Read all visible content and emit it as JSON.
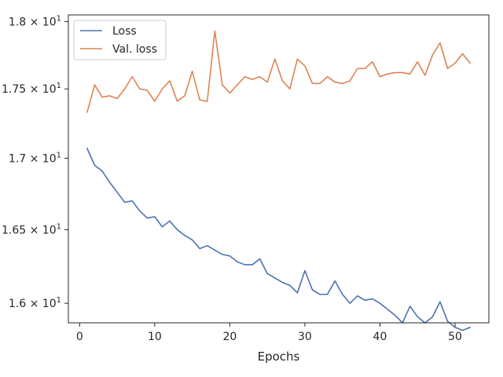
{
  "chart_data": {
    "type": "line",
    "xlabel": "Epochs",
    "ylabel": "",
    "xlim": [
      -1.5,
      54.5
    ],
    "ylim": [
      15.87,
      18.05
    ],
    "y_scale": "log",
    "grid": false,
    "legend_position": "top-left",
    "x_ticks": [
      0,
      10,
      20,
      30,
      40,
      50
    ],
    "x_tick_labels": [
      "0",
      "10",
      "20",
      "30",
      "40",
      "50"
    ],
    "y_ticks": [
      16.0,
      16.5,
      17.0,
      17.5,
      18.0
    ],
    "y_tick_labels": [
      {
        "mantissa": "1.6",
        "base": "10",
        "exp": "1"
      },
      {
        "mantissa": "1.65",
        "base": "10",
        "exp": "1"
      },
      {
        "mantissa": "1.7",
        "base": "10",
        "exp": "1"
      },
      {
        "mantissa": "1.75",
        "base": "10",
        "exp": "1"
      },
      {
        "mantissa": "1.8",
        "base": "10",
        "exp": "1"
      }
    ],
    "x": [
      1,
      2,
      3,
      4,
      5,
      6,
      7,
      8,
      9,
      10,
      11,
      12,
      13,
      14,
      15,
      16,
      17,
      18,
      19,
      20,
      21,
      22,
      23,
      24,
      25,
      26,
      27,
      28,
      29,
      30,
      31,
      32,
      33,
      34,
      35,
      36,
      37,
      38,
      39,
      40,
      41,
      42,
      43,
      44,
      45,
      46,
      47,
      48,
      49,
      50,
      51,
      52
    ],
    "series": [
      {
        "name": "Loss",
        "color": "#4c72b0",
        "values": [
          17.07,
          16.95,
          16.91,
          16.83,
          16.76,
          16.69,
          16.7,
          16.63,
          16.58,
          16.59,
          16.52,
          16.56,
          16.5,
          16.46,
          16.43,
          16.37,
          16.39,
          16.36,
          16.33,
          16.32,
          16.28,
          16.26,
          16.26,
          16.3,
          16.2,
          16.17,
          16.14,
          16.12,
          16.07,
          16.22,
          16.09,
          16.06,
          16.06,
          16.15,
          16.06,
          16.0,
          16.05,
          16.02,
          16.03,
          16.0,
          15.96,
          15.92,
          15.87,
          15.98,
          15.91,
          15.87,
          15.91,
          16.01,
          15.88,
          15.84,
          15.82,
          15.84
        ]
      },
      {
        "name": "Val. loss",
        "color": "#dd8452",
        "values": [
          17.33,
          17.53,
          17.44,
          17.45,
          17.43,
          17.5,
          17.59,
          17.5,
          17.49,
          17.41,
          17.5,
          17.56,
          17.41,
          17.45,
          17.63,
          17.42,
          17.41,
          17.93,
          17.53,
          17.47,
          17.53,
          17.59,
          17.57,
          17.59,
          17.55,
          17.72,
          17.56,
          17.5,
          17.72,
          17.67,
          17.54,
          17.54,
          17.59,
          17.55,
          17.54,
          17.56,
          17.65,
          17.65,
          17.7,
          17.59,
          17.61,
          17.62,
          17.62,
          17.61,
          17.7,
          17.6,
          17.75,
          17.84,
          17.65,
          17.69,
          17.76,
          17.69
        ]
      }
    ]
  }
}
